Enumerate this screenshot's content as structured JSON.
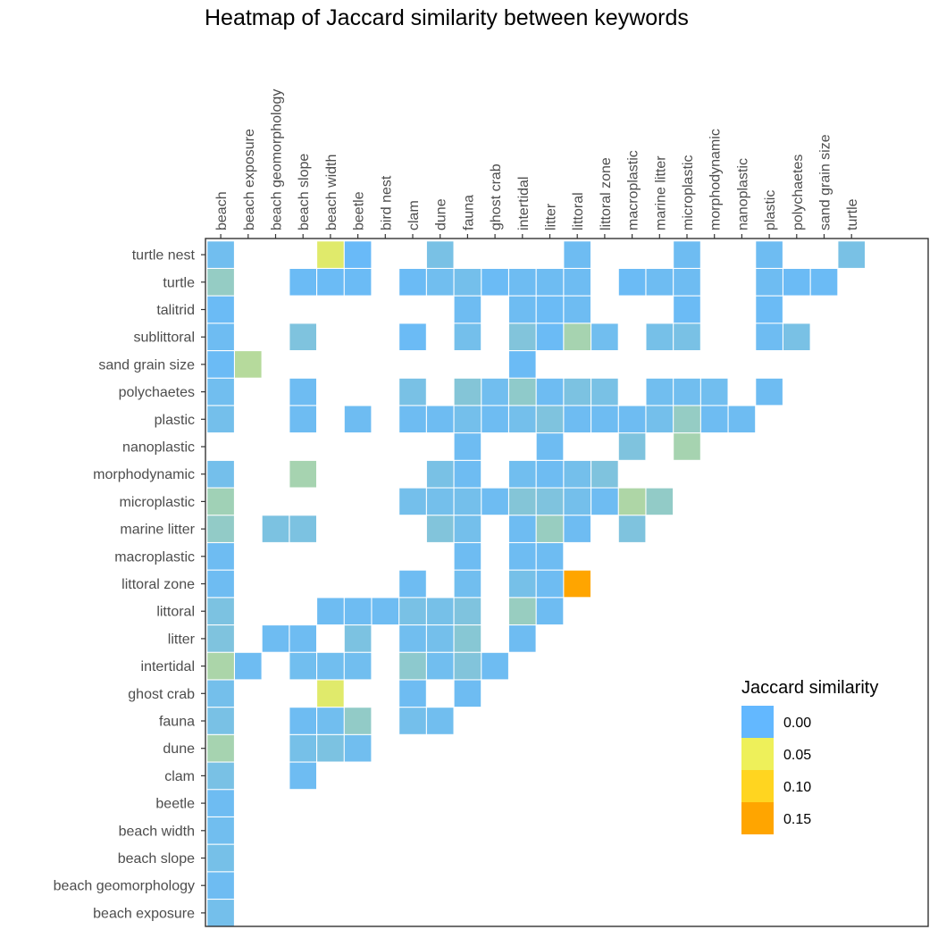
{
  "chart_data": {
    "type": "heatmap",
    "title": "Heatmap of Jaccard similarity between keywords",
    "x_categories": [
      "beach",
      "beach exposure",
      "beach geomorphology",
      "beach slope",
      "beach width",
      "beetle",
      "bird nest",
      "clam",
      "dune",
      "fauna",
      "ghost crab",
      "intertidal",
      "litter",
      "littoral",
      "littoral zone",
      "macroplastic",
      "marine litter",
      "microplastic",
      "morphodynamic",
      "nanoplastic",
      "plastic",
      "polychaetes",
      "sand grain size",
      "turtle"
    ],
    "y_categories": [
      "turtle nest",
      "turtle",
      "talitrid",
      "sublittoral",
      "sand grain size",
      "polychaetes",
      "plastic",
      "nanoplastic",
      "morphodynamic",
      "microplastic",
      "marine litter",
      "macroplastic",
      "littoral zone",
      "littoral",
      "litter",
      "intertidal",
      "ghost crab",
      "fauna",
      "dune",
      "clam",
      "beetle",
      "beach width",
      "beach slope",
      "beach geomorphology",
      "beach exposure"
    ],
    "cells": [
      {
        "x": "beach",
        "y": "turtle nest",
        "value": 0.005
      },
      {
        "x": "beach width",
        "y": "turtle nest",
        "value": 0.045
      },
      {
        "x": "beetle",
        "y": "turtle nest",
        "value": 0.002
      },
      {
        "x": "dune",
        "y": "turtle nest",
        "value": 0.008
      },
      {
        "x": "littoral",
        "y": "turtle nest",
        "value": 0.004
      },
      {
        "x": "microplastic",
        "y": "turtle nest",
        "value": 0.004
      },
      {
        "x": "plastic",
        "y": "turtle nest",
        "value": 0.004
      },
      {
        "x": "turtle",
        "y": "turtle nest",
        "value": 0.008
      },
      {
        "x": "beach",
        "y": "turtle",
        "value": 0.018
      },
      {
        "x": "beach slope",
        "y": "turtle",
        "value": 0.003
      },
      {
        "x": "beach width",
        "y": "turtle",
        "value": 0.003
      },
      {
        "x": "beetle",
        "y": "turtle",
        "value": 0.003
      },
      {
        "x": "clam",
        "y": "turtle",
        "value": 0.003
      },
      {
        "x": "dune",
        "y": "turtle",
        "value": 0.005
      },
      {
        "x": "fauna",
        "y": "turtle",
        "value": 0.006
      },
      {
        "x": "ghost crab",
        "y": "turtle",
        "value": 0.003
      },
      {
        "x": "intertidal",
        "y": "turtle",
        "value": 0.004
      },
      {
        "x": "litter",
        "y": "turtle",
        "value": 0.004
      },
      {
        "x": "littoral",
        "y": "turtle",
        "value": 0.004
      },
      {
        "x": "macroplastic",
        "y": "turtle",
        "value": 0.003
      },
      {
        "x": "marine litter",
        "y": "turtle",
        "value": 0.004
      },
      {
        "x": "microplastic",
        "y": "turtle",
        "value": 0.004
      },
      {
        "x": "plastic",
        "y": "turtle",
        "value": 0.004
      },
      {
        "x": "polychaetes",
        "y": "turtle",
        "value": 0.003
      },
      {
        "x": "sand grain size",
        "y": "turtle",
        "value": 0.003
      },
      {
        "x": "beach",
        "y": "talitrid",
        "value": 0.003
      },
      {
        "x": "fauna",
        "y": "talitrid",
        "value": 0.004
      },
      {
        "x": "intertidal",
        "y": "talitrid",
        "value": 0.004
      },
      {
        "x": "litter",
        "y": "talitrid",
        "value": 0.003
      },
      {
        "x": "littoral",
        "y": "talitrid",
        "value": 0.004
      },
      {
        "x": "microplastic",
        "y": "talitrid",
        "value": 0.003
      },
      {
        "x": "plastic",
        "y": "talitrid",
        "value": 0.003
      },
      {
        "x": "beach",
        "y": "sublittoral",
        "value": 0.004
      },
      {
        "x": "beach slope",
        "y": "sublittoral",
        "value": 0.01
      },
      {
        "x": "clam",
        "y": "sublittoral",
        "value": 0.003
      },
      {
        "x": "fauna",
        "y": "sublittoral",
        "value": 0.006
      },
      {
        "x": "intertidal",
        "y": "sublittoral",
        "value": 0.011
      },
      {
        "x": "litter",
        "y": "sublittoral",
        "value": 0.003
      },
      {
        "x": "littoral",
        "y": "sublittoral",
        "value": 0.024
      },
      {
        "x": "littoral zone",
        "y": "sublittoral",
        "value": 0.005
      },
      {
        "x": "marine litter",
        "y": "sublittoral",
        "value": 0.007
      },
      {
        "x": "microplastic",
        "y": "sublittoral",
        "value": 0.008
      },
      {
        "x": "plastic",
        "y": "sublittoral",
        "value": 0.004
      },
      {
        "x": "polychaetes",
        "y": "sublittoral",
        "value": 0.008
      },
      {
        "x": "beach",
        "y": "sand grain size",
        "value": 0.003
      },
      {
        "x": "beach exposure",
        "y": "sand grain size",
        "value": 0.03
      },
      {
        "x": "intertidal",
        "y": "sand grain size",
        "value": 0.003
      },
      {
        "x": "beach",
        "y": "polychaetes",
        "value": 0.005
      },
      {
        "x": "beach slope",
        "y": "polychaetes",
        "value": 0.004
      },
      {
        "x": "clam",
        "y": "polychaetes",
        "value": 0.008
      },
      {
        "x": "fauna",
        "y": "polychaetes",
        "value": 0.012
      },
      {
        "x": "ghost crab",
        "y": "polychaetes",
        "value": 0.005
      },
      {
        "x": "intertidal",
        "y": "polychaetes",
        "value": 0.016
      },
      {
        "x": "litter",
        "y": "polychaetes",
        "value": 0.004
      },
      {
        "x": "littoral",
        "y": "polychaetes",
        "value": 0.009
      },
      {
        "x": "littoral zone",
        "y": "polychaetes",
        "value": 0.008
      },
      {
        "x": "marine litter",
        "y": "polychaetes",
        "value": 0.005
      },
      {
        "x": "microplastic",
        "y": "polychaetes",
        "value": 0.005
      },
      {
        "x": "morphodynamic",
        "y": "polychaetes",
        "value": 0.005
      },
      {
        "x": "plastic",
        "y": "polychaetes",
        "value": 0.004
      },
      {
        "x": "beach",
        "y": "plastic",
        "value": 0.006
      },
      {
        "x": "beach slope",
        "y": "plastic",
        "value": 0.004
      },
      {
        "x": "beetle",
        "y": "plastic",
        "value": 0.004
      },
      {
        "x": "clam",
        "y": "plastic",
        "value": 0.004
      },
      {
        "x": "dune",
        "y": "plastic",
        "value": 0.004
      },
      {
        "x": "fauna",
        "y": "plastic",
        "value": 0.006
      },
      {
        "x": "ghost crab",
        "y": "plastic",
        "value": 0.004
      },
      {
        "x": "intertidal",
        "y": "plastic",
        "value": 0.006
      },
      {
        "x": "litter",
        "y": "plastic",
        "value": 0.01
      },
      {
        "x": "littoral",
        "y": "plastic",
        "value": 0.004
      },
      {
        "x": "littoral zone",
        "y": "plastic",
        "value": 0.004
      },
      {
        "x": "macroplastic",
        "y": "plastic",
        "value": 0.004
      },
      {
        "x": "marine litter",
        "y": "plastic",
        "value": 0.006
      },
      {
        "x": "microplastic",
        "y": "plastic",
        "value": 0.018
      },
      {
        "x": "morphodynamic",
        "y": "plastic",
        "value": 0.004
      },
      {
        "x": "nanoplastic",
        "y": "plastic",
        "value": 0.004
      },
      {
        "x": "fauna",
        "y": "nanoplastic",
        "value": 0.004
      },
      {
        "x": "litter",
        "y": "nanoplastic",
        "value": 0.004
      },
      {
        "x": "macroplastic",
        "y": "nanoplastic",
        "value": 0.01
      },
      {
        "x": "microplastic",
        "y": "nanoplastic",
        "value": 0.024
      },
      {
        "x": "beach",
        "y": "morphodynamic",
        "value": 0.006
      },
      {
        "x": "beach slope",
        "y": "morphodynamic",
        "value": 0.024
      },
      {
        "x": "dune",
        "y": "morphodynamic",
        "value": 0.008
      },
      {
        "x": "fauna",
        "y": "morphodynamic",
        "value": 0.004
      },
      {
        "x": "intertidal",
        "y": "morphodynamic",
        "value": 0.005
      },
      {
        "x": "litter",
        "y": "morphodynamic",
        "value": 0.004
      },
      {
        "x": "littoral",
        "y": "morphodynamic",
        "value": 0.006
      },
      {
        "x": "littoral zone",
        "y": "morphodynamic",
        "value": 0.01
      },
      {
        "x": "beach",
        "y": "microplastic",
        "value": 0.022
      },
      {
        "x": "clam",
        "y": "microplastic",
        "value": 0.006
      },
      {
        "x": "dune",
        "y": "microplastic",
        "value": 0.006
      },
      {
        "x": "fauna",
        "y": "microplastic",
        "value": 0.006
      },
      {
        "x": "ghost crab",
        "y": "microplastic",
        "value": 0.004
      },
      {
        "x": "intertidal",
        "y": "microplastic",
        "value": 0.012
      },
      {
        "x": "litter",
        "y": "microplastic",
        "value": 0.01
      },
      {
        "x": "littoral",
        "y": "microplastic",
        "value": 0.006
      },
      {
        "x": "littoral zone",
        "y": "microplastic",
        "value": 0.004
      },
      {
        "x": "macroplastic",
        "y": "microplastic",
        "value": 0.027
      },
      {
        "x": "marine litter",
        "y": "microplastic",
        "value": 0.017
      },
      {
        "x": "beach",
        "y": "marine litter",
        "value": 0.017
      },
      {
        "x": "beach geomorphology",
        "y": "marine litter",
        "value": 0.009
      },
      {
        "x": "beach slope",
        "y": "marine litter",
        "value": 0.009
      },
      {
        "x": "dune",
        "y": "marine litter",
        "value": 0.011
      },
      {
        "x": "fauna",
        "y": "marine litter",
        "value": 0.006
      },
      {
        "x": "intertidal",
        "y": "marine litter",
        "value": 0.004
      },
      {
        "x": "litter",
        "y": "marine litter",
        "value": 0.019
      },
      {
        "x": "littoral",
        "y": "marine litter",
        "value": 0.004
      },
      {
        "x": "macroplastic",
        "y": "marine litter",
        "value": 0.01
      },
      {
        "x": "beach",
        "y": "macroplastic",
        "value": 0.004
      },
      {
        "x": "fauna",
        "y": "macroplastic",
        "value": 0.004
      },
      {
        "x": "intertidal",
        "y": "macroplastic",
        "value": 0.004
      },
      {
        "x": "litter",
        "y": "macroplastic",
        "value": 0.004
      },
      {
        "x": "beach",
        "y": "littoral zone",
        "value": 0.004
      },
      {
        "x": "clam",
        "y": "littoral zone",
        "value": 0.004
      },
      {
        "x": "fauna",
        "y": "littoral zone",
        "value": 0.005
      },
      {
        "x": "intertidal",
        "y": "littoral zone",
        "value": 0.007
      },
      {
        "x": "litter",
        "y": "littoral zone",
        "value": 0.004
      },
      {
        "x": "littoral",
        "y": "littoral zone",
        "value": 0.155
      },
      {
        "x": "beach",
        "y": "littoral",
        "value": 0.009
      },
      {
        "x": "beach width",
        "y": "littoral",
        "value": 0.004
      },
      {
        "x": "beetle",
        "y": "littoral",
        "value": 0.004
      },
      {
        "x": "bird nest",
        "y": "littoral",
        "value": 0.004
      },
      {
        "x": "clam",
        "y": "littoral",
        "value": 0.008
      },
      {
        "x": "dune",
        "y": "littoral",
        "value": 0.007
      },
      {
        "x": "fauna",
        "y": "littoral",
        "value": 0.01
      },
      {
        "x": "intertidal",
        "y": "littoral",
        "value": 0.019
      },
      {
        "x": "litter",
        "y": "littoral",
        "value": 0.004
      },
      {
        "x": "beach",
        "y": "litter",
        "value": 0.01
      },
      {
        "x": "beach geomorphology",
        "y": "litter",
        "value": 0.004
      },
      {
        "x": "beach slope",
        "y": "litter",
        "value": 0.004
      },
      {
        "x": "beetle",
        "y": "litter",
        "value": 0.009
      },
      {
        "x": "clam",
        "y": "litter",
        "value": 0.005
      },
      {
        "x": "dune",
        "y": "litter",
        "value": 0.006
      },
      {
        "x": "fauna",
        "y": "litter",
        "value": 0.013
      },
      {
        "x": "intertidal",
        "y": "litter",
        "value": 0.004
      },
      {
        "x": "beach",
        "y": "intertidal",
        "value": 0.026
      },
      {
        "x": "beach exposure",
        "y": "intertidal",
        "value": 0.004
      },
      {
        "x": "beach slope",
        "y": "intertidal",
        "value": 0.005
      },
      {
        "x": "beach width",
        "y": "intertidal",
        "value": 0.005
      },
      {
        "x": "beetle",
        "y": "intertidal",
        "value": 0.005
      },
      {
        "x": "clam",
        "y": "intertidal",
        "value": 0.015
      },
      {
        "x": "dune",
        "y": "intertidal",
        "value": 0.005
      },
      {
        "x": "fauna",
        "y": "intertidal",
        "value": 0.011
      },
      {
        "x": "ghost crab",
        "y": "intertidal",
        "value": 0.004
      },
      {
        "x": "beach",
        "y": "ghost crab",
        "value": 0.006
      },
      {
        "x": "beach width",
        "y": "ghost crab",
        "value": 0.045
      },
      {
        "x": "clam",
        "y": "ghost crab",
        "value": 0.004
      },
      {
        "x": "fauna",
        "y": "ghost crab",
        "value": 0.004
      },
      {
        "x": "beach",
        "y": "fauna",
        "value": 0.008
      },
      {
        "x": "beach slope",
        "y": "fauna",
        "value": 0.004
      },
      {
        "x": "beach width",
        "y": "fauna",
        "value": 0.005
      },
      {
        "x": "beetle",
        "y": "fauna",
        "value": 0.017
      },
      {
        "x": "clam",
        "y": "fauna",
        "value": 0.006
      },
      {
        "x": "dune",
        "y": "fauna",
        "value": 0.005
      },
      {
        "x": "beach",
        "y": "dune",
        "value": 0.024
      },
      {
        "x": "beach slope",
        "y": "dune",
        "value": 0.007
      },
      {
        "x": "beach width",
        "y": "dune",
        "value": 0.009
      },
      {
        "x": "beetle",
        "y": "dune",
        "value": 0.005
      },
      {
        "x": "beach",
        "y": "clam",
        "value": 0.008
      },
      {
        "x": "beach slope",
        "y": "clam",
        "value": 0.004
      },
      {
        "x": "beach",
        "y": "beetle",
        "value": 0.004
      },
      {
        "x": "beach",
        "y": "beach width",
        "value": 0.005
      },
      {
        "x": "beach",
        "y": "beach slope",
        "value": 0.007
      },
      {
        "x": "beach",
        "y": "beach geomorphology",
        "value": 0.004
      },
      {
        "x": "beach",
        "y": "beach exposure",
        "value": 0.006
      }
    ],
    "legend": {
      "title": "Jaccard similarity",
      "position": "right",
      "labels": [
        "0.00",
        "0.05",
        "0.10",
        "0.15"
      ],
      "values": [
        0,
        0.05,
        0.1,
        0.15
      ],
      "colors": [
        "#63b8ff",
        "#eef05a",
        "#ffd520",
        "#ffa500"
      ]
    },
    "color_scale": {
      "stops": [
        {
          "value": 0,
          "color": "#63b8ff"
        },
        {
          "value": 0.05,
          "color": "#eef05a"
        },
        {
          "value": 0.1,
          "color": "#ffd520"
        },
        {
          "value": 0.155,
          "color": "#ffa500"
        }
      ]
    },
    "grid": false
  }
}
